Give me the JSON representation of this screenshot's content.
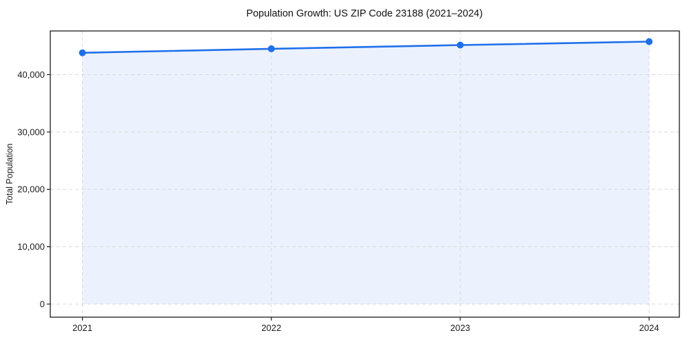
{
  "chart_data": {
    "type": "area",
    "title": "Population Growth: US ZIP Code 23188 (2021–2024)",
    "xlabel": "",
    "ylabel": "Total Population",
    "x": [
      2021,
      2022,
      2023,
      2024
    ],
    "series": [
      {
        "name": "Total Population",
        "values": [
          43800,
          44500,
          45150,
          45750
        ]
      }
    ],
    "x_tick_labels": [
      "2021",
      "2022",
      "2023",
      "2024"
    ],
    "y_ticks": [
      0,
      10000,
      20000,
      30000,
      40000
    ],
    "y_tick_labels": [
      "0",
      "10,000",
      "20,000",
      "30,000",
      "40,000"
    ],
    "xlim": [
      2020.83,
      2024.16
    ],
    "ylim": [
      -2280,
      47610
    ],
    "fill_baseline": 0,
    "grid": true,
    "grid_style": "dashed",
    "legend": "none",
    "colors": {
      "line": "#1f6feb",
      "marker": "#1f6feb",
      "fill": "#1f6feb",
      "fill_opacity": 0.09,
      "grid": "#d8d8d8",
      "spine": "#1a1a1a",
      "text": "#1a1a1a"
    }
  }
}
